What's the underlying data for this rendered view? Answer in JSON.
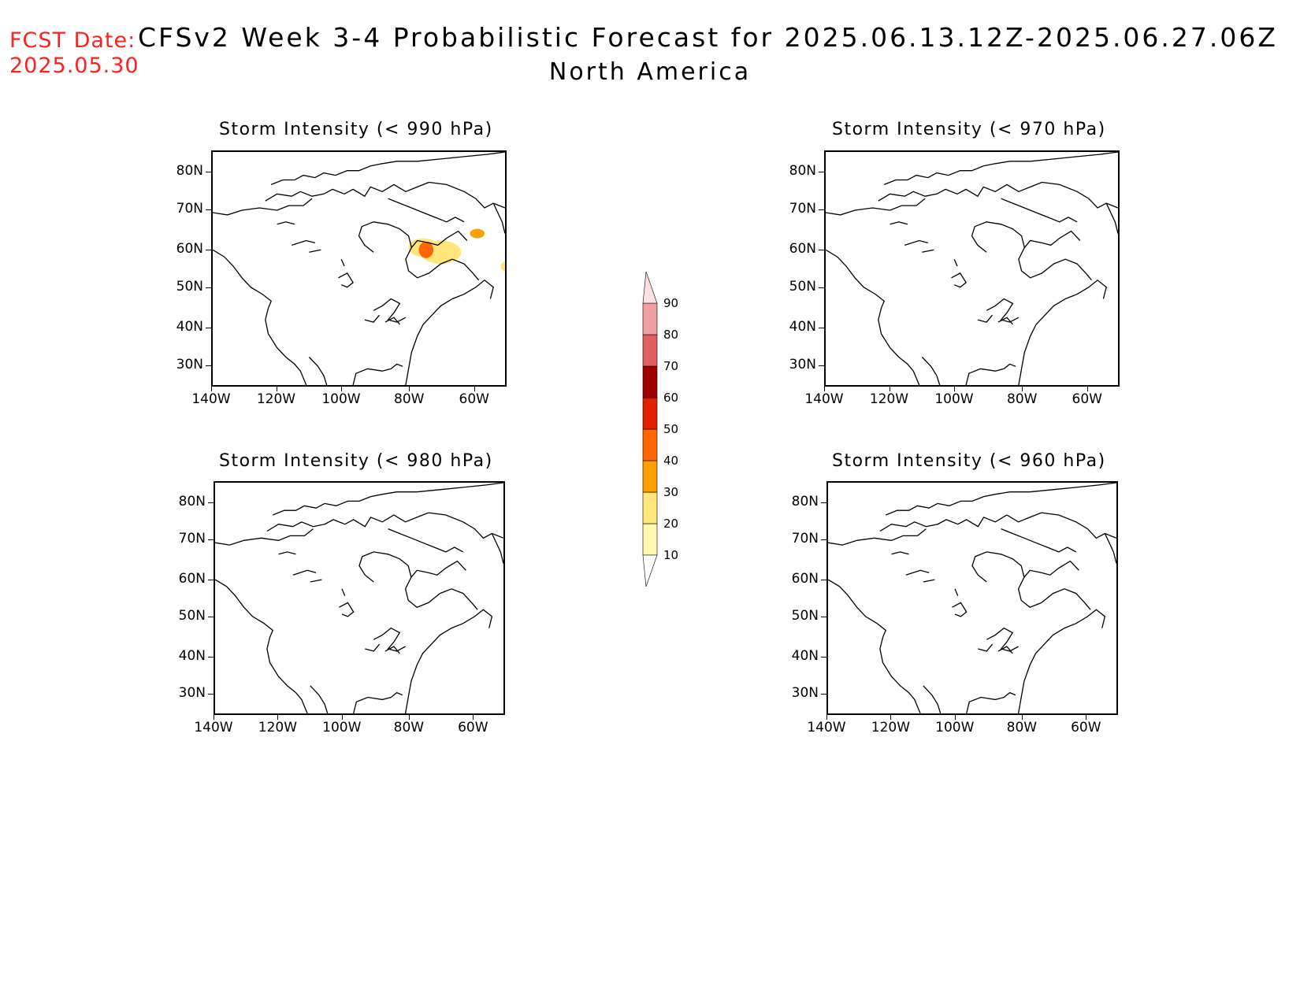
{
  "header": {
    "fcst_label": "FCST Date:",
    "fcst_date": "2025.05.30",
    "title": "CFSv2 Week 3-4 Probabilistic Forecast for 2025.06.13.12Z-2025.06.27.06Z",
    "subtitle": "North America"
  },
  "panels": [
    {
      "title": "Storm Intensity (< 990 hPa)",
      "has_signal": true
    },
    {
      "title": "Storm Intensity (< 970 hPa)",
      "has_signal": false
    },
    {
      "title": "Storm Intensity (< 980 hPa)",
      "has_signal": false
    },
    {
      "title": "Storm Intensity (< 960 hPa)",
      "has_signal": false
    }
  ],
  "lat_labels": [
    "80N",
    "70N",
    "60N",
    "50N",
    "40N",
    "30N"
  ],
  "lon_labels": [
    "140W",
    "120W",
    "100W",
    "80W",
    "60W"
  ],
  "colorbar": {
    "levels": [
      "10",
      "20",
      "30",
      "40",
      "50",
      "60",
      "70",
      "80",
      "90"
    ],
    "colors": [
      "#fff9b0",
      "#ffe57a",
      "#ffa000",
      "#ff6600",
      "#e02000",
      "#a00000",
      "#e06060",
      "#f0a0a0",
      "#ffe0e0"
    ]
  }
}
